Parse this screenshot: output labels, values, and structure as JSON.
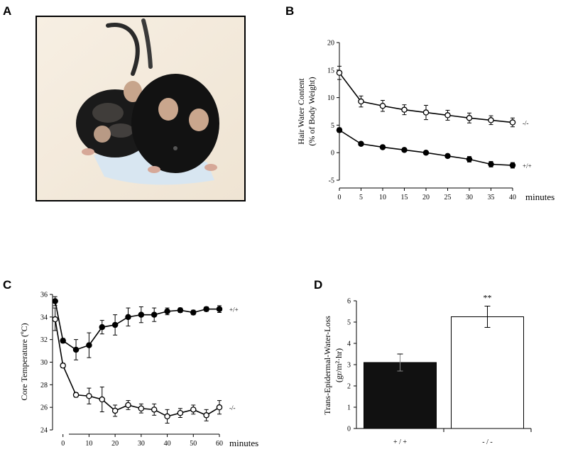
{
  "panels": {
    "a": "A",
    "b": "B",
    "c": "C",
    "d": "D"
  },
  "photo": {
    "description_icon": "mouse-photo-icon",
    "colors": {
      "wall": "#f4ece0",
      "fur": "#141414",
      "ear": "#c7a58c",
      "blanket": "#d9e7f2"
    }
  },
  "chart_data": [
    {
      "panel": "B",
      "type": "line",
      "ylabel_line1": "Hair Water Content",
      "ylabel_line2": "(% of Body Weight)",
      "xlabel": "minutes",
      "xlim": [
        0,
        40
      ],
      "ylim": [
        -5,
        20
      ],
      "x_ticks": [
        "0",
        "5",
        "10",
        "15",
        "20",
        "25",
        "30",
        "35",
        "40"
      ],
      "y_ticks": [
        "-5",
        "0",
        "5",
        "10",
        "15",
        "20"
      ],
      "grid": false,
      "x": [
        0,
        5,
        10,
        15,
        20,
        25,
        30,
        35,
        40
      ],
      "series": [
        {
          "name": "-/-",
          "marker": "open",
          "values": [
            14.5,
            9.3,
            8.5,
            7.8,
            7.3,
            6.8,
            6.3,
            5.9,
            5.5
          ],
          "errors": [
            1.2,
            1.0,
            1.0,
            0.9,
            1.3,
            0.9,
            0.9,
            0.8,
            0.8
          ]
        },
        {
          "name": "+/+",
          "marker": "filled",
          "values": [
            4.1,
            1.6,
            1.0,
            0.5,
            0.0,
            -0.6,
            -1.2,
            -2.1,
            -2.3
          ],
          "errors": [
            0.4,
            0.2,
            0.2,
            0.2,
            0.3,
            0.3,
            0.5,
            0.5,
            0.5
          ]
        }
      ]
    },
    {
      "panel": "C",
      "type": "line",
      "ylabel": "Core Temperature (ºC)",
      "xlabel": "minutes",
      "xlim": [
        -4,
        60
      ],
      "ylim": [
        24,
        36
      ],
      "x_ticks": [
        "0",
        "10",
        "20",
        "30",
        "40",
        "50",
        "60"
      ],
      "y_ticks": [
        "24",
        "26",
        "28",
        "30",
        "32",
        "34",
        "36"
      ],
      "grid": false,
      "x": [
        -3,
        0,
        5,
        10,
        15,
        20,
        25,
        30,
        35,
        40,
        45,
        50,
        55,
        60
      ],
      "series": [
        {
          "name": "+/+",
          "marker": "filled",
          "values": [
            35.4,
            31.9,
            31.1,
            31.5,
            33.1,
            33.3,
            34.0,
            34.2,
            34.2,
            34.5,
            34.6,
            34.4,
            34.7,
            34.7
          ],
          "errors": [
            0.4,
            0.2,
            0.9,
            1.1,
            0.6,
            0.9,
            0.8,
            0.7,
            0.6,
            0.3,
            0.2,
            0.2,
            0.2,
            0.3
          ]
        },
        {
          "name": "-/-",
          "marker": "open",
          "values": [
            33.8,
            29.7,
            27.1,
            27.0,
            26.7,
            25.7,
            26.2,
            25.9,
            25.8,
            25.2,
            25.5,
            25.8,
            25.3,
            26.0
          ],
          "errors": [
            1.0,
            0.2,
            0.2,
            0.7,
            1.1,
            0.5,
            0.4,
            0.4,
            0.5,
            0.6,
            0.4,
            0.4,
            0.5,
            0.6
          ]
        }
      ]
    },
    {
      "panel": "D",
      "type": "bar",
      "ylabel_line1": "Trans-Epidermal-Water-Loss",
      "ylabel_line2": "(gr/m²·hr)",
      "ylim": [
        0,
        6
      ],
      "y_ticks": [
        "0",
        "1",
        "2",
        "3",
        "4",
        "5",
        "6"
      ],
      "grid": false,
      "categories": [
        "+ / +",
        "- / -"
      ],
      "values": [
        3.1,
        5.25
      ],
      "errors": [
        0.4,
        0.5
      ],
      "fills": [
        "#111111",
        "#ffffff"
      ],
      "annotation": "**"
    }
  ]
}
